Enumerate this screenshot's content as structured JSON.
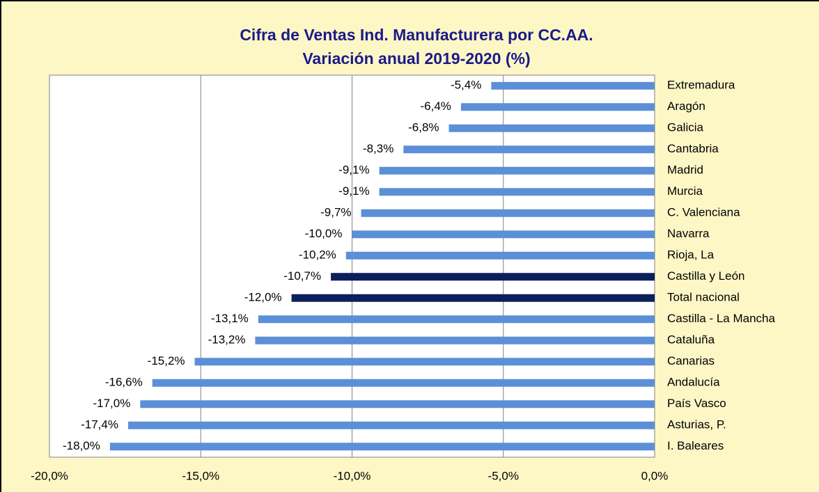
{
  "chart_data": {
    "type": "bar",
    "orientation": "horizontal",
    "title": "Cifra de Ventas Ind. Manufacturera por CC.AA.",
    "subtitle": "Variación anual 2019-2020  (%)",
    "categories": [
      "Extremadura",
      "Aragón",
      "Galicia",
      "Cantabria",
      "Madrid",
      "Murcia",
      "C. Valenciana",
      "Navarra",
      "Rioja, La",
      "Castilla y León",
      "Total nacional",
      "Castilla - La Mancha",
      "Cataluña",
      "Canarias",
      "Andalucía",
      "País Vasco",
      "Asturias, P.",
      "I. Baleares"
    ],
    "values": [
      -5.4,
      -6.4,
      -6.8,
      -8.3,
      -9.1,
      -9.1,
      -9.7,
      -10.0,
      -10.2,
      -10.7,
      -12.0,
      -13.1,
      -13.2,
      -15.2,
      -16.6,
      -17.0,
      -17.4,
      -18.0
    ],
    "value_labels": [
      "-5,4%",
      "-6,4%",
      "-6,8%",
      "-8,3%",
      "-9,1%",
      "-9,1%",
      "-9,7%",
      "-10,0%",
      "-10,2%",
      "-10,7%",
      "-12,0%",
      "-13,1%",
      "-13,2%",
      "-15,2%",
      "-16,6%",
      "-17,0%",
      "-17,4%",
      "-18,0%"
    ],
    "colors": [
      "#5b8fd8",
      "#5b8fd8",
      "#5b8fd8",
      "#5b8fd8",
      "#5b8fd8",
      "#5b8fd8",
      "#5b8fd8",
      "#5b8fd8",
      "#5b8fd8",
      "#0c1f5a",
      "#0c1f5a",
      "#5b8fd8",
      "#5b8fd8",
      "#5b8fd8",
      "#5b8fd8",
      "#5b8fd8",
      "#5b8fd8",
      "#5b8fd8"
    ],
    "xlim": [
      -20,
      0
    ],
    "xticks": [
      {
        "value": -20,
        "label": "-20,0%"
      },
      {
        "value": -15,
        "label": "-15,0%"
      },
      {
        "value": -10,
        "label": "-10,0%"
      },
      {
        "value": -5,
        "label": "-5,0%"
      },
      {
        "value": 0,
        "label": "0,0%"
      }
    ],
    "grid": true
  }
}
